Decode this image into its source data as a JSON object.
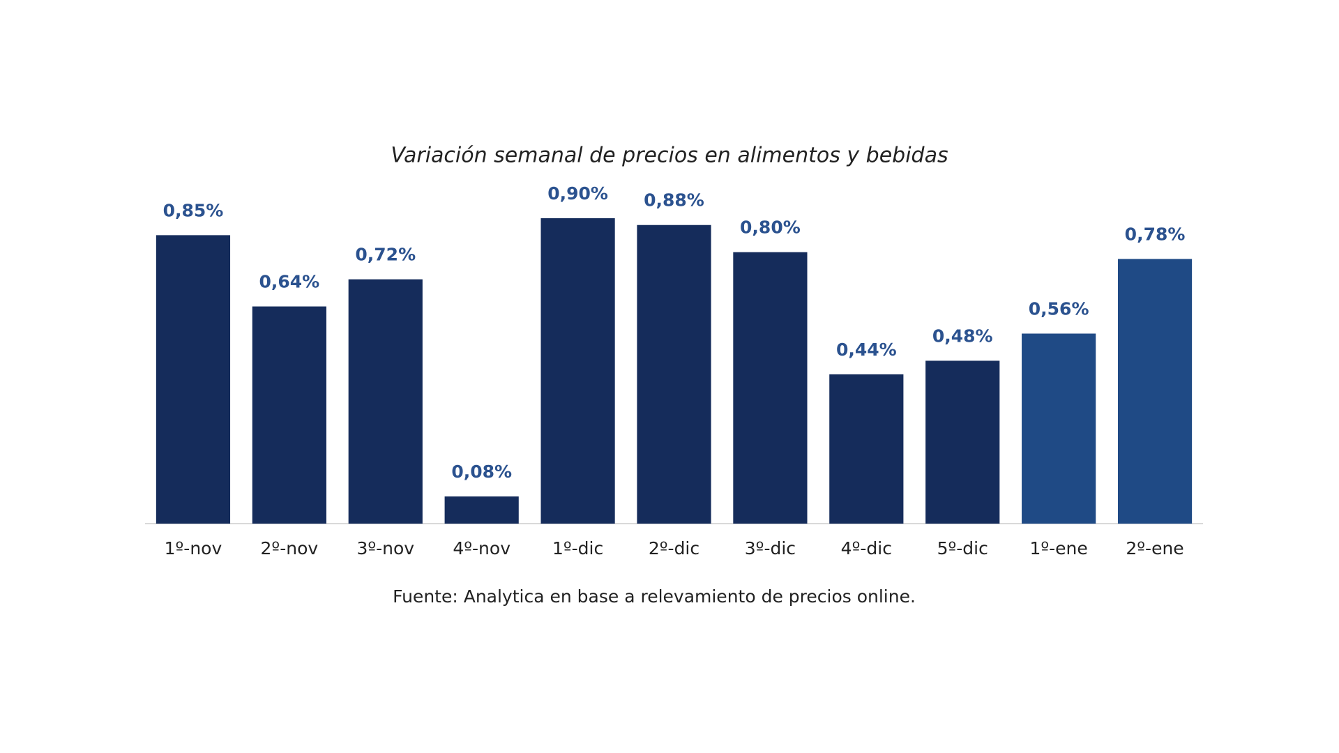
{
  "chart_data": {
    "type": "bar",
    "title": "Variación semanal de precios en alimentos y bebidas",
    "categories": [
      "1º-nov",
      "2º-nov",
      "3º-nov",
      "4º-nov",
      "1º-dic",
      "2º-dic",
      "3º-dic",
      "4º-dic",
      "5º-dic",
      "1º-ene",
      "2º-ene"
    ],
    "values": [
      0.85,
      0.64,
      0.72,
      0.08,
      0.9,
      0.88,
      0.8,
      0.44,
      0.48,
      0.56,
      0.78
    ],
    "value_labels": [
      "0,85%",
      "0,64%",
      "0,72%",
      "0,08%",
      "0,90%",
      "0,88%",
      "0,80%",
      "0,44%",
      "0,48%",
      "0,56%",
      "0,78%"
    ],
    "colors": [
      "#152c5b",
      "#152c5b",
      "#152c5b",
      "#152c5b",
      "#152c5b",
      "#152c5b",
      "#152c5b",
      "#152c5b",
      "#152c5b",
      "#1f4a85",
      "#1f4a85"
    ],
    "source": "Fuente: Analytica en base a relevamiento de precios online."
  }
}
